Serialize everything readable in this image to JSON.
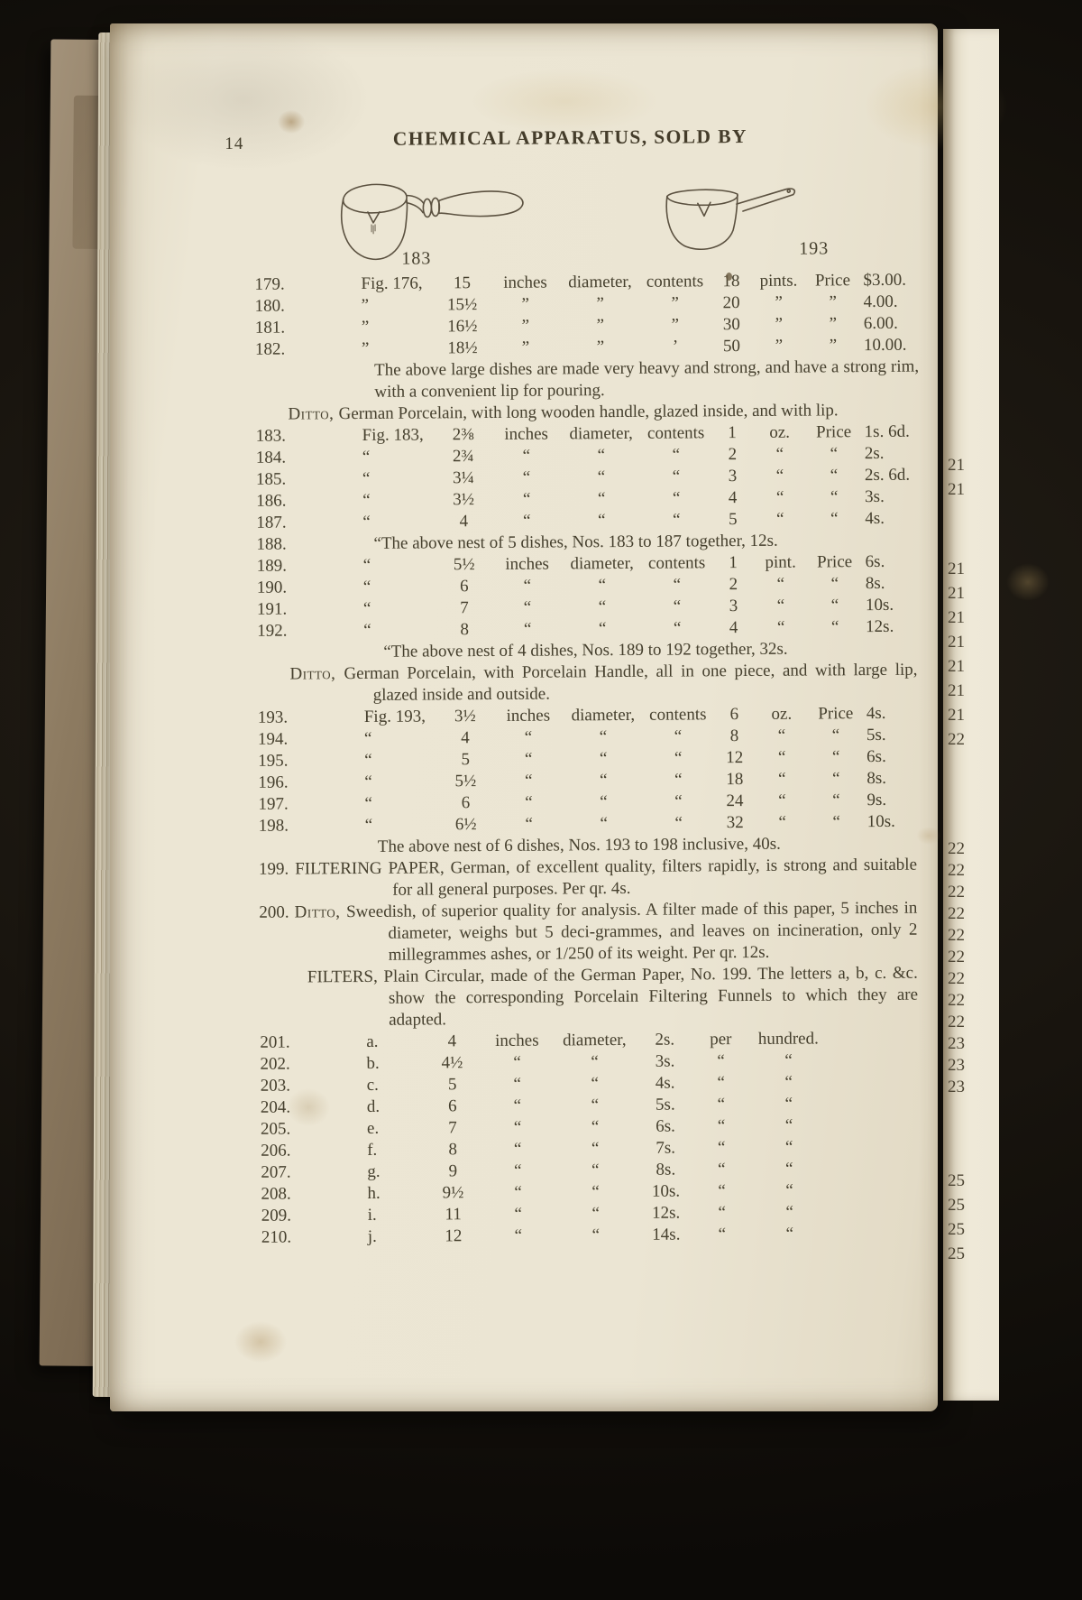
{
  "page": {
    "folio": "14",
    "header": "CHEMICAL APPARATUS, SOLD BY",
    "figures": [
      {
        "label": "183",
        "description": "evaporating dish with turned wooden handle"
      },
      {
        "label": "193",
        "description": "evaporating dish with porcelain handle"
      }
    ]
  },
  "content": {
    "blocks": [
      {
        "type": "dish-rows",
        "rows": [
          {
            "no": "179.",
            "cells": [
              "Fig. 176,",
              "15",
              "inches",
              "diameter,",
              "contents",
              "18",
              "pints.",
              "Price",
              "$3.00."
            ]
          },
          {
            "no": "180.",
            "cells": [
              "”",
              "15½",
              "”",
              "”",
              "”",
              "20",
              "”",
              "”",
              "4.00."
            ]
          },
          {
            "no": "181.",
            "cells": [
              "”",
              "16½",
              "”",
              "”",
              "”",
              "30",
              "”",
              "”",
              "6.00."
            ]
          },
          {
            "no": "182.",
            "cells": [
              "”",
              "18½",
              "”",
              "”",
              "’",
              "50",
              "”",
              "”",
              "10.00."
            ]
          }
        ]
      },
      {
        "type": "para",
        "cls": "p-heavy",
        "text": "The above large dishes are made very heavy and strong, and have a strong rim, with a convenient lip for pouring."
      },
      {
        "type": "hang",
        "cls": "ditto-block",
        "sc": true,
        "lead": "Ditto,",
        "text": "German Porcelain, with long wooden handle, glazed inside, and with lip."
      },
      {
        "type": "dish-rows",
        "rows": [
          {
            "no": "183.",
            "cells": [
              "Fig. 183,",
              "2⅜",
              "inches",
              "diameter,",
              "contents",
              "1",
              "oz.",
              "Price",
              "1s. 6d."
            ]
          },
          {
            "no": "184.",
            "cells": [
              "“",
              "2¾",
              "“",
              "“",
              "“",
              "2",
              "“",
              "“",
              "2s."
            ]
          },
          {
            "no": "185.",
            "cells": [
              "“",
              "3¼",
              "“",
              "“",
              "“",
              "3",
              "“",
              "“",
              "2s. 6d."
            ]
          },
          {
            "no": "186.",
            "cells": [
              "“",
              "3½",
              "“",
              "“",
              "“",
              "4",
              "“",
              "“",
              "3s."
            ]
          },
          {
            "no": "187.",
            "cells": [
              "“",
              "4",
              "“",
              "“",
              "“",
              "5",
              "“",
              "“",
              "4s."
            ]
          }
        ]
      },
      {
        "type": "numpara",
        "no": "188.",
        "text": "“The above nest of 5 dishes, Nos. 183 to 187 together, 12s."
      },
      {
        "type": "dish-rows",
        "rows": [
          {
            "no": "189.",
            "cells": [
              "“",
              "5½",
              "inches",
              "diameter,",
              "contents",
              "1",
              "pint.",
              "Price",
              "6s."
            ]
          },
          {
            "no": "190.",
            "cells": [
              "“",
              "6",
              "“",
              "“",
              "“",
              "2",
              "“",
              "“",
              "8s."
            ]
          },
          {
            "no": "191.",
            "cells": [
              "“",
              "7",
              "“",
              "“",
              "“",
              "3",
              "“",
              "“",
              "10s."
            ]
          },
          {
            "no": "192.",
            "cells": [
              "“",
              "8",
              "“",
              "“",
              "“",
              "4",
              "“",
              "“",
              "12s."
            ]
          }
        ]
      },
      {
        "type": "para",
        "cls": "p-nest4",
        "text": "“The above nest of 4 dishes, Nos. 189 to 192 together, 32s."
      },
      {
        "type": "hang",
        "cls": "ditto-block",
        "sc": true,
        "lead": "Ditto,",
        "text": "German Porcelain, with Porcelain Handle, all in one piece, and with large lip, glazed inside and outside."
      },
      {
        "type": "dish-rows",
        "rows": [
          {
            "no": "193.",
            "cells": [
              "Fig. 193,",
              "3½",
              "inches",
              "diameter,",
              "contents",
              "6",
              "oz.",
              "Price",
              "4s."
            ]
          },
          {
            "no": "194.",
            "cells": [
              "“",
              "4",
              "“",
              "“",
              "“",
              "8",
              "“",
              "“",
              "5s."
            ]
          },
          {
            "no": "195.",
            "cells": [
              "“",
              "5",
              "“",
              "“",
              "“",
              "12",
              "“",
              "“",
              "6s."
            ]
          },
          {
            "no": "196.",
            "cells": [
              "“",
              "5½",
              "“",
              "“",
              "“",
              "18",
              "“",
              "“",
              "8s."
            ]
          },
          {
            "no": "197.",
            "cells": [
              "“",
              "6",
              "“",
              "“",
              "“",
              "24",
              "“",
              "“",
              "9s."
            ]
          },
          {
            "no": "198.",
            "cells": [
              "“",
              "6½",
              "“",
              "“",
              "“",
              "32",
              "“",
              "“",
              "10s."
            ]
          }
        ]
      },
      {
        "type": "para",
        "cls": "p-nest6",
        "text": "The above nest of 6 dishes, Nos. 193 to 198 inclusive, 40s."
      },
      {
        "type": "numhang",
        "cls": "blk199",
        "no": "199.",
        "lead": "FILTERING PAPER,",
        "text": "German, of excellent quality, filters rapidly, is strong and suitable for all general purposes.  Per qr. 4s."
      },
      {
        "type": "numhang",
        "cls": "blk200",
        "no": "200.",
        "sc": true,
        "lead": "Ditto,",
        "text": "Sweedish, of superior quality for analysis.  A filter made of this paper, 5 inches in diameter, weighs but 5 deci-grammes, and leaves on incineration, only 2 millegrammes ashes, or 1/250 of its weight.  Per qr. 12s."
      },
      {
        "type": "hang",
        "cls": "filters-block",
        "lead": "FILTERS,",
        "text": "Plain Circular, made of the German Paper, No. 199. The letters a, b, c. &c. show the corresponding Porcelain Filtering Funnels to which they are adapted."
      },
      {
        "type": "filter-rows",
        "rows": [
          {
            "no": "201.",
            "cells": [
              "a.",
              "4",
              "inches",
              "diameter,",
              "2s.",
              "per",
              "hundred."
            ]
          },
          {
            "no": "202.",
            "cells": [
              "b.",
              "4½",
              "“",
              "“",
              "3s.",
              "“",
              "“"
            ]
          },
          {
            "no": "203.",
            "cells": [
              "c.",
              "5",
              "“",
              "“",
              "4s.",
              "“",
              "“"
            ]
          },
          {
            "no": "204.",
            "cells": [
              "d.",
              "6",
              "“",
              "“",
              "5s.",
              "“",
              "“"
            ]
          },
          {
            "no": "205.",
            "cells": [
              "e.",
              "7",
              "“",
              "“",
              "6s.",
              "“",
              "“"
            ]
          },
          {
            "no": "206.",
            "cells": [
              "f.",
              "8",
              "“",
              "“",
              "7s.",
              "“",
              "“"
            ]
          },
          {
            "no": "207.",
            "cells": [
              "g.",
              "9",
              "“",
              "“",
              "8s.",
              "“",
              "“"
            ]
          },
          {
            "no": "208.",
            "cells": [
              "h.",
              "9½",
              "“",
              "“",
              "10s.",
              "“",
              "“"
            ]
          },
          {
            "no": "209.",
            "cells": [
              "i.",
              "11",
              "“",
              "“",
              "12s.",
              "“",
              "“"
            ]
          },
          {
            "no": "210.",
            "cells": [
              "j.",
              "12",
              "“",
              "“",
              "14s.",
              "“",
              "“"
            ]
          }
        ]
      }
    ]
  },
  "sliver": {
    "groups": [
      [
        "21",
        "21"
      ],
      [
        "21",
        "21",
        "21",
        "21",
        "21",
        "21",
        "21",
        "22"
      ],
      [
        "22",
        "22",
        "22",
        "22",
        "22",
        "22",
        "22",
        "22",
        "22",
        "23",
        "23",
        "23"
      ],
      [
        "25",
        "25",
        "25",
        "25"
      ]
    ]
  }
}
